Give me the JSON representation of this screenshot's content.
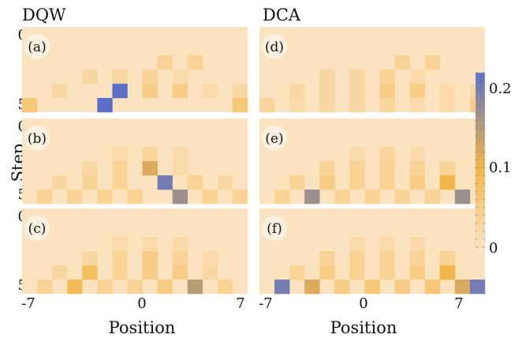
{
  "chart_data": {
    "type": "heatmap",
    "column_titles": [
      "DQW",
      "DCA"
    ],
    "xlabel": "Position",
    "ylabel": "Step",
    "x_ticks": [
      "-7",
      "0",
      "7"
    ],
    "y_ticks": [
      "0",
      "5"
    ],
    "x_range": [
      -7,
      7
    ],
    "y_range": [
      0,
      5
    ],
    "colorbar": {
      "ticks": [
        "0",
        "0.1",
        "0.2"
      ],
      "min": 0,
      "max": 0.22,
      "low_color": "#fbe3c0",
      "mid_color": "#f4b54a",
      "high_color": "#5b6fc9"
    },
    "panels": [
      {
        "label": "(a)",
        "column": "DQW",
        "cells": [
          [
            0,
            0,
            0,
            0,
            0,
            0,
            0,
            0,
            0,
            0,
            0,
            0,
            0,
            0,
            0
          ],
          [
            0,
            0,
            0,
            0,
            0,
            0,
            0,
            0,
            0,
            0,
            0,
            0,
            0,
            0,
            0
          ],
          [
            0,
            0,
            0,
            0,
            0,
            0,
            0,
            0,
            0,
            0.035,
            0,
            0.035,
            0,
            0,
            0
          ],
          [
            0,
            0,
            0,
            0,
            0.025,
            0,
            0.025,
            0,
            0.035,
            0,
            0.02,
            0,
            0,
            0,
            0
          ],
          [
            0,
            0,
            0.025,
            0,
            0,
            0,
            0.22,
            0,
            0.05,
            0,
            0.05,
            0,
            0.02,
            0,
            0.025
          ],
          [
            0.06,
            0,
            0,
            0,
            0,
            0.22,
            0,
            0,
            0,
            0,
            0,
            0,
            0,
            0,
            0.06
          ]
        ]
      },
      {
        "label": "(b)",
        "column": "DQW",
        "cells": [
          [
            0,
            0,
            0,
            0,
            0,
            0,
            0,
            0,
            0,
            0,
            0,
            0,
            0,
            0,
            0
          ],
          [
            0,
            0,
            0,
            0,
            0,
            0,
            0,
            0,
            0,
            0,
            0,
            0,
            0,
            0,
            0
          ],
          [
            0,
            0,
            0,
            0,
            0,
            0,
            0.02,
            0,
            0.03,
            0,
            0.02,
            0,
            0,
            0,
            0
          ],
          [
            0,
            0,
            0,
            0,
            0.025,
            0,
            0.035,
            0,
            0.12,
            0,
            0.02,
            0,
            0,
            0,
            0
          ],
          [
            0,
            0,
            0.025,
            0,
            0.035,
            0,
            0.035,
            0,
            0,
            0.2,
            0,
            0.035,
            0,
            0.025,
            0
          ],
          [
            0,
            0.035,
            0,
            0.035,
            0,
            0.035,
            0,
            0.035,
            0,
            0,
            0.17,
            0,
            0.035,
            0,
            0.035
          ]
        ]
      },
      {
        "label": "(c)",
        "column": "DQW",
        "cells": [
          [
            0,
            0,
            0,
            0,
            0,
            0,
            0,
            0,
            0,
            0,
            0,
            0,
            0,
            0,
            0
          ],
          [
            0,
            0,
            0,
            0,
            0,
            0,
            0,
            0,
            0,
            0,
            0,
            0,
            0,
            0,
            0
          ],
          [
            0,
            0,
            0,
            0,
            0,
            0,
            0.02,
            0,
            0.02,
            0,
            0.02,
            0,
            0,
            0,
            0
          ],
          [
            0,
            0,
            0,
            0,
            0.025,
            0,
            0.035,
            0,
            0.05,
            0,
            0.035,
            0,
            0.02,
            0,
            0
          ],
          [
            0,
            0,
            0.025,
            0,
            0.08,
            0,
            0.035,
            0,
            0.05,
            0,
            0.05,
            0,
            0.025,
            0,
            0
          ],
          [
            0,
            0.035,
            0,
            0.09,
            0,
            0.035,
            0,
            0.035,
            0,
            0.05,
            0,
            0.15,
            0,
            0.035,
            0
          ]
        ]
      },
      {
        "label": "(d)",
        "column": "DCA",
        "cells": [
          [
            0,
            0,
            0,
            0,
            0,
            0,
            0,
            0,
            0,
            0,
            0,
            0,
            0,
            0,
            0
          ],
          [
            0,
            0,
            0,
            0,
            0,
            0,
            0,
            0,
            0,
            0,
            0,
            0,
            0,
            0,
            0
          ],
          [
            0,
            0,
            0,
            0,
            0,
            0,
            0,
            0,
            0,
            0.035,
            0,
            0.035,
            0,
            0,
            0
          ],
          [
            0,
            0,
            0,
            0,
            0.025,
            0,
            0.025,
            0,
            0.035,
            0,
            0.02,
            0,
            0,
            0,
            0
          ],
          [
            0,
            0,
            0.025,
            0,
            0.025,
            0,
            0.025,
            0,
            0.05,
            0,
            0.05,
            0,
            0.02,
            0,
            0.025
          ],
          [
            0.03,
            0,
            0.02,
            0,
            0.025,
            0,
            0.025,
            0,
            0.03,
            0,
            0.02,
            0,
            0.02,
            0,
            0.05
          ]
        ]
      },
      {
        "label": "(e)",
        "column": "DCA",
        "cells": [
          [
            0,
            0,
            0,
            0,
            0,
            0,
            0,
            0,
            0,
            0,
            0,
            0,
            0,
            0,
            0
          ],
          [
            0,
            0,
            0,
            0,
            0,
            0,
            0,
            0,
            0,
            0,
            0,
            0,
            0,
            0,
            0
          ],
          [
            0,
            0,
            0,
            0,
            0,
            0,
            0.02,
            0,
            0.03,
            0,
            0.02,
            0,
            0,
            0,
            0
          ],
          [
            0,
            0,
            0,
            0,
            0.035,
            0,
            0.035,
            0,
            0.035,
            0,
            0.035,
            0,
            0.035,
            0,
            0
          ],
          [
            0,
            0,
            0.035,
            0,
            0.05,
            0,
            0.035,
            0,
            0.035,
            0,
            0.05,
            0,
            0.1,
            0,
            0
          ],
          [
            0,
            0.035,
            0,
            0.17,
            0,
            0.035,
            0,
            0.035,
            0,
            0.035,
            0,
            0.035,
            0,
            0.17,
            0
          ]
        ]
      },
      {
        "label": "(f)",
        "column": "DCA",
        "cells": [
          [
            0,
            0,
            0,
            0,
            0,
            0,
            0,
            0,
            0,
            0,
            0,
            0,
            0,
            0,
            0
          ],
          [
            0,
            0,
            0,
            0,
            0,
            0,
            0,
            0,
            0,
            0,
            0,
            0,
            0,
            0,
            0
          ],
          [
            0,
            0,
            0,
            0,
            0,
            0,
            0.02,
            0,
            0.02,
            0,
            0.02,
            0,
            0,
            0,
            0
          ],
          [
            0,
            0,
            0,
            0,
            0.035,
            0,
            0.035,
            0,
            0.035,
            0,
            0.035,
            0,
            0.035,
            0,
            0
          ],
          [
            0,
            0,
            0.035,
            0,
            0.05,
            0,
            0.035,
            0,
            0.035,
            0,
            0.05,
            0,
            0.1,
            0,
            0
          ],
          [
            0,
            0.2,
            0,
            0.12,
            0,
            0.05,
            0,
            0.06,
            0,
            0.05,
            0,
            0.06,
            0,
            0.12,
            0.2
          ]
        ]
      }
    ]
  }
}
